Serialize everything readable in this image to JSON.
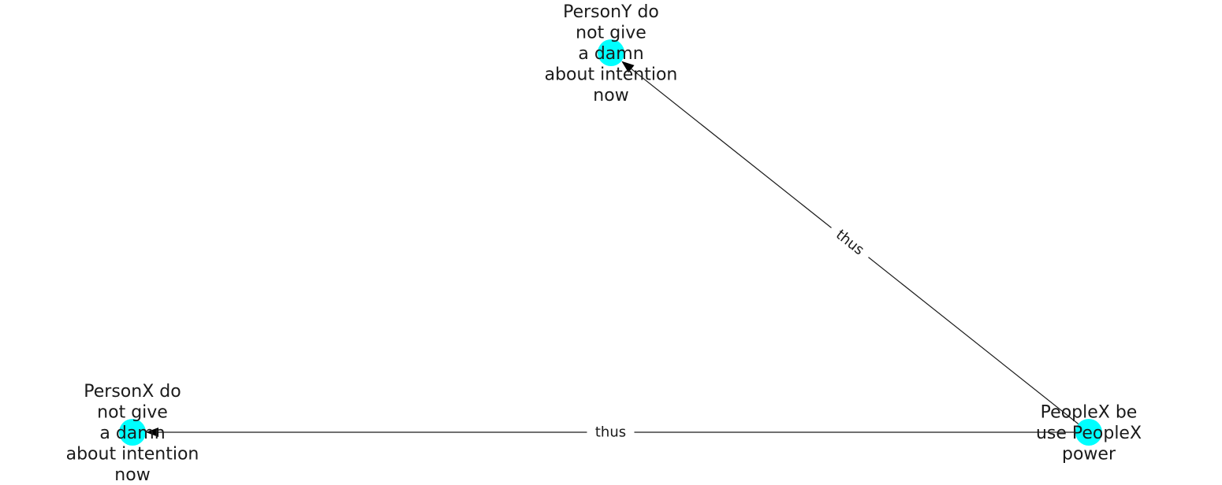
{
  "graph": {
    "node_color": "#00ffff",
    "edge_color": "#1a1a1a",
    "nodes": [
      {
        "id": "personY",
        "lines": [
          "PersonY do",
          "not give",
          "a damn",
          "about intention",
          "now"
        ]
      },
      {
        "id": "personX",
        "lines": [
          "PersonX do",
          "not give",
          "a damn",
          "about intention",
          "now"
        ]
      },
      {
        "id": "peopleX",
        "lines": [
          "PeopleX be",
          "use PeopleX",
          "power"
        ]
      }
    ],
    "edges": [
      {
        "from": "peopleX",
        "to": "personY",
        "label": "thus"
      },
      {
        "from": "peopleX",
        "to": "personX",
        "label": "thus"
      }
    ]
  }
}
